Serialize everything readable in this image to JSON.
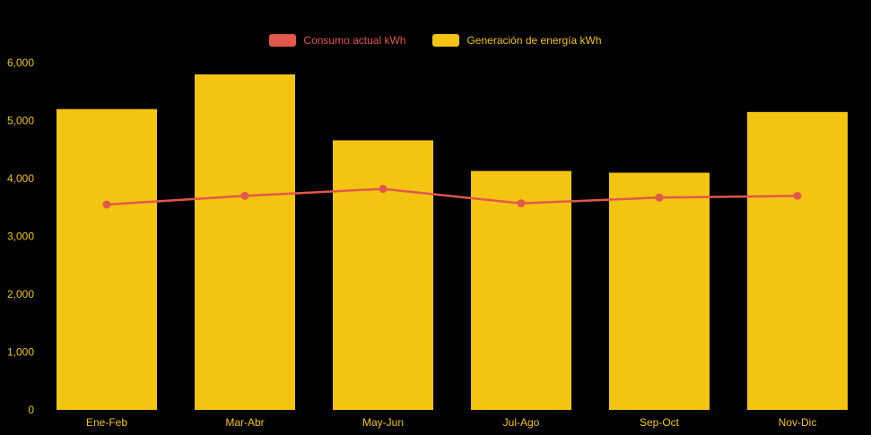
{
  "page": {
    "background": "#000000"
  },
  "legend": {
    "items": [
      {
        "label": "Consumo actual kWh",
        "color": "#e2574c",
        "series_type": "line"
      },
      {
        "label": "Generación de energía kWh",
        "color": "#f3c411",
        "series_type": "bar"
      }
    ]
  },
  "axes": {
    "ytick_labels": [
      "0",
      "1,000",
      "2,000",
      "3,000",
      "4,000",
      "5,000",
      "6,000"
    ],
    "ytick_values": [
      0,
      1000,
      2000,
      3000,
      4000,
      5000,
      6000
    ],
    "label_color": "#f3c411"
  },
  "chart_data": {
    "type": "bar",
    "title": "",
    "xlabel": "",
    "ylabel": "",
    "categories": [
      "Ene-Feb",
      "Mar-Abr",
      "May-Jun",
      "Jul-Ago",
      "Sep-Oct",
      "Nov-Dic"
    ],
    "series": [
      {
        "name": "Generación de energía kWh",
        "type": "bar",
        "color": "#f3c411",
        "values": [
          5200,
          5800,
          4660,
          4130,
          4100,
          5150
        ]
      },
      {
        "name": "Consumo actual kWh",
        "type": "line",
        "color": "#e2574c",
        "values": [
          3550,
          3700,
          3820,
          3570,
          3670,
          3700
        ]
      }
    ],
    "ylim": [
      0,
      6000
    ],
    "ytick_step": 1000,
    "grid": false,
    "legend_position": "top"
  }
}
